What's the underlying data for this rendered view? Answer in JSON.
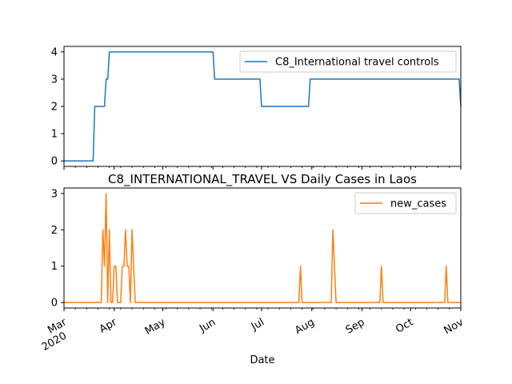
{
  "chart_data": [
    {
      "type": "line",
      "title": "",
      "xlabel": "",
      "ylabel": "",
      "grid": false,
      "legend_position": "upper-right",
      "xlim": [
        "2020-03-01",
        "2020-11-01"
      ],
      "ylim": [
        -0.2,
        4.2
      ],
      "yticks": [
        0,
        1,
        2,
        3,
        4
      ],
      "color": "#1f77b4",
      "series": [
        {
          "name": "C8_International travel controls",
          "points": [
            [
              "2020-03-01",
              0
            ],
            [
              "2020-03-19",
              0
            ],
            [
              "2020-03-20",
              2
            ],
            [
              "2020-03-26",
              2
            ],
            [
              "2020-03-27",
              3
            ],
            [
              "2020-03-28",
              3
            ],
            [
              "2020-03-29",
              4
            ],
            [
              "2020-06-01",
              4
            ],
            [
              "2020-06-02",
              3
            ],
            [
              "2020-06-30",
              3
            ],
            [
              "2020-07-01",
              2
            ],
            [
              "2020-07-30",
              2
            ],
            [
              "2020-07-31",
              3
            ],
            [
              "2020-10-31",
              3
            ],
            [
              "2020-11-01",
              2
            ]
          ]
        }
      ]
    },
    {
      "type": "line",
      "title": "C8_INTERNATIONAL_TRAVEL VS Daily Cases in Laos",
      "xlabel": "Date",
      "ylabel": "",
      "grid": false,
      "legend_position": "upper-right",
      "xlim": [
        "2020-03-01",
        "2020-11-01"
      ],
      "ylim": [
        -0.15,
        3.15
      ],
      "yticks": [
        0,
        1,
        2,
        3
      ],
      "xticks": [
        {
          "date": "2020-03-01",
          "label": "Mar",
          "sublabel": "2020"
        },
        {
          "date": "2020-04-01",
          "label": "Apr"
        },
        {
          "date": "2020-05-01",
          "label": "May"
        },
        {
          "date": "2020-06-01",
          "label": "Jun"
        },
        {
          "date": "2020-07-01",
          "label": "Jul"
        },
        {
          "date": "2020-08-01",
          "label": "Aug"
        },
        {
          "date": "2020-09-01",
          "label": "Sep"
        },
        {
          "date": "2020-10-01",
          "label": "Oct"
        },
        {
          "date": "2020-11-01",
          "label": "Nov"
        }
      ],
      "color": "#ff7f0e",
      "series": [
        {
          "name": "new_cases",
          "points": [
            [
              "2020-03-01",
              0
            ],
            [
              "2020-03-24",
              0
            ],
            [
              "2020-03-25",
              2
            ],
            [
              "2020-03-26",
              1
            ],
            [
              "2020-03-27",
              3
            ],
            [
              "2020-03-28",
              0
            ],
            [
              "2020-03-29",
              2
            ],
            [
              "2020-03-30",
              0
            ],
            [
              "2020-03-31",
              0
            ],
            [
              "2020-04-01",
              1
            ],
            [
              "2020-04-02",
              1
            ],
            [
              "2020-04-03",
              0
            ],
            [
              "2020-04-04",
              0
            ],
            [
              "2020-04-05",
              0
            ],
            [
              "2020-04-06",
              1
            ],
            [
              "2020-04-07",
              1
            ],
            [
              "2020-04-08",
              2
            ],
            [
              "2020-04-09",
              1
            ],
            [
              "2020-04-10",
              1
            ],
            [
              "2020-04-11",
              0
            ],
            [
              "2020-04-12",
              2
            ],
            [
              "2020-04-13",
              1
            ],
            [
              "2020-04-14",
              0
            ],
            [
              "2020-07-24",
              0
            ],
            [
              "2020-07-25",
              1
            ],
            [
              "2020-07-26",
              0
            ],
            [
              "2020-08-13",
              0
            ],
            [
              "2020-08-14",
              2
            ],
            [
              "2020-08-15",
              1
            ],
            [
              "2020-08-16",
              0
            ],
            [
              "2020-09-12",
              0
            ],
            [
              "2020-09-13",
              1
            ],
            [
              "2020-09-14",
              0
            ],
            [
              "2020-10-22",
              0
            ],
            [
              "2020-10-23",
              1
            ],
            [
              "2020-10-24",
              0
            ],
            [
              "2020-11-01",
              0
            ]
          ]
        }
      ]
    }
  ]
}
